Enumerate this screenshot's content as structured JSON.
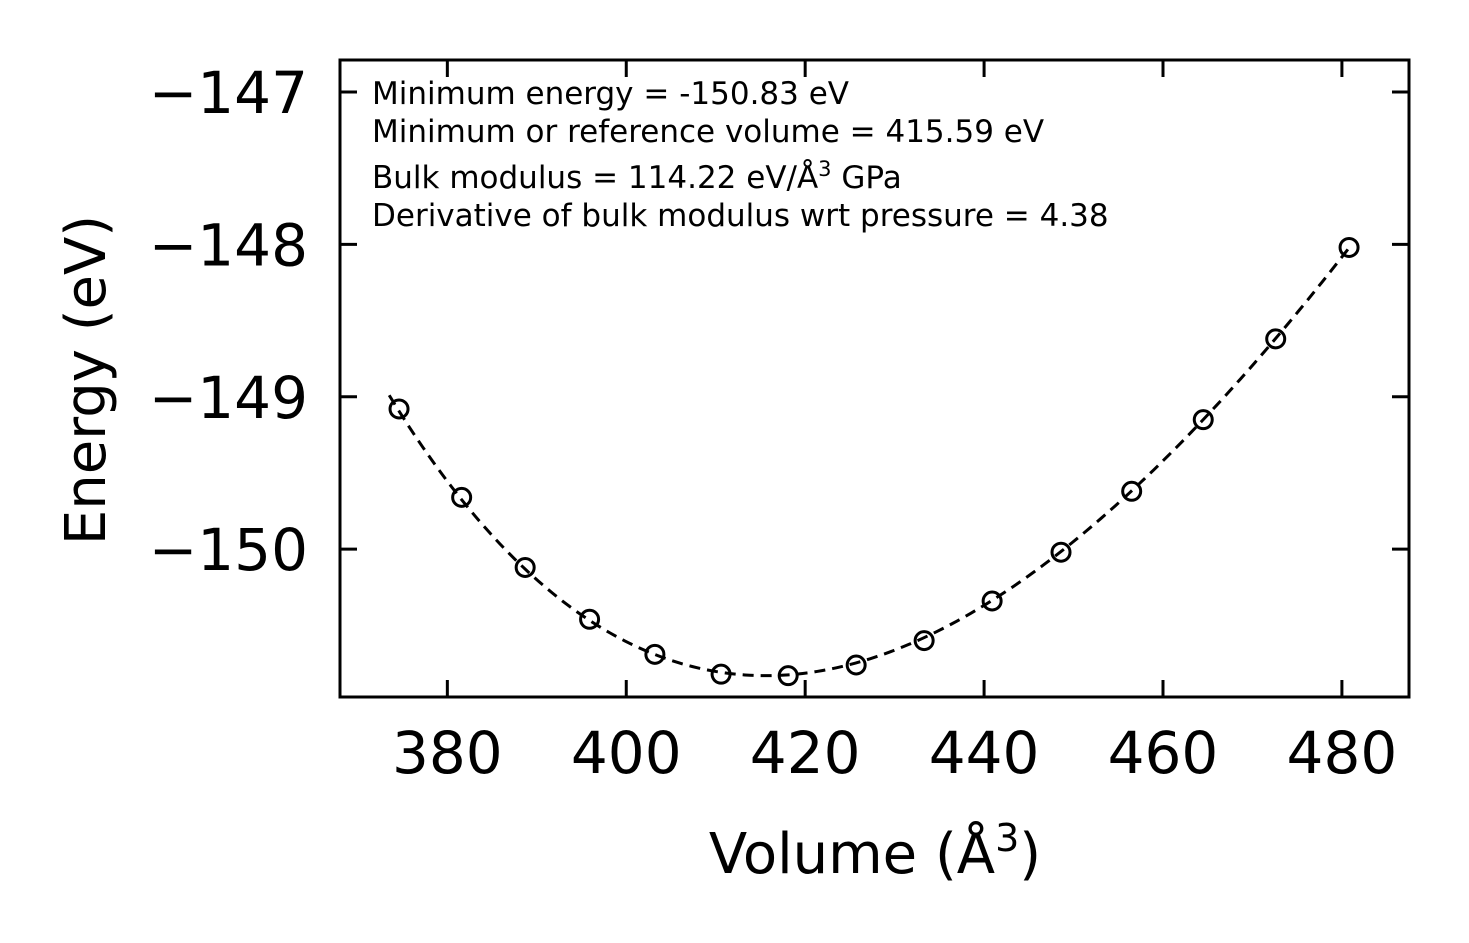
{
  "chart_data": {
    "type": "scatter",
    "title": "",
    "xlabel": "Volume (Å",
    "xlabel_sup": "3",
    "xlabel_close": ")",
    "ylabel": "Energy (eV)",
    "xlim": [
      368,
      487.5
    ],
    "ylim": [
      -150.97,
      -146.79
    ],
    "xticks": [
      380,
      400,
      420,
      440,
      460,
      480
    ],
    "xtick_labels": [
      "380",
      "400",
      "420",
      "440",
      "460",
      "480"
    ],
    "yticks": [
      -147,
      -148,
      -149,
      -150
    ],
    "ytick_labels": [
      "−147",
      "−148",
      "−149",
      "−150"
    ],
    "minor_yticks": [
      -151
    ],
    "series": [
      {
        "name": "data",
        "style": "open-circle",
        "x": [
          374.6,
          381.6,
          388.7,
          395.9,
          403.2,
          410.6,
          418.1,
          425.7,
          433.3,
          440.9,
          448.6,
          456.5,
          464.5,
          472.6,
          480.8
        ],
        "y": [
          -149.08,
          -149.66,
          -150.12,
          -150.46,
          -150.69,
          -150.82,
          -150.83,
          -150.76,
          -150.6,
          -150.34,
          -150.02,
          -149.62,
          -149.15,
          -148.62,
          -148.02
        ]
      },
      {
        "name": "fit",
        "style": "dashed-line",
        "x_range": [
          373.5,
          481.0
        ],
        "fit_params": {
          "E0": -150.83,
          "V0": 415.59,
          "B": 114.22,
          "Bp": 4.38
        }
      }
    ],
    "annotations": [
      "Minimum energy = -150.83 eV",
      "Minimum or reference volume = 415.59 eV",
      "Bulk modulus = 114.22 eV/Å",
      "3",
      " GPa",
      "Derivative of bulk modulus wrt pressure = 4.38"
    ]
  }
}
